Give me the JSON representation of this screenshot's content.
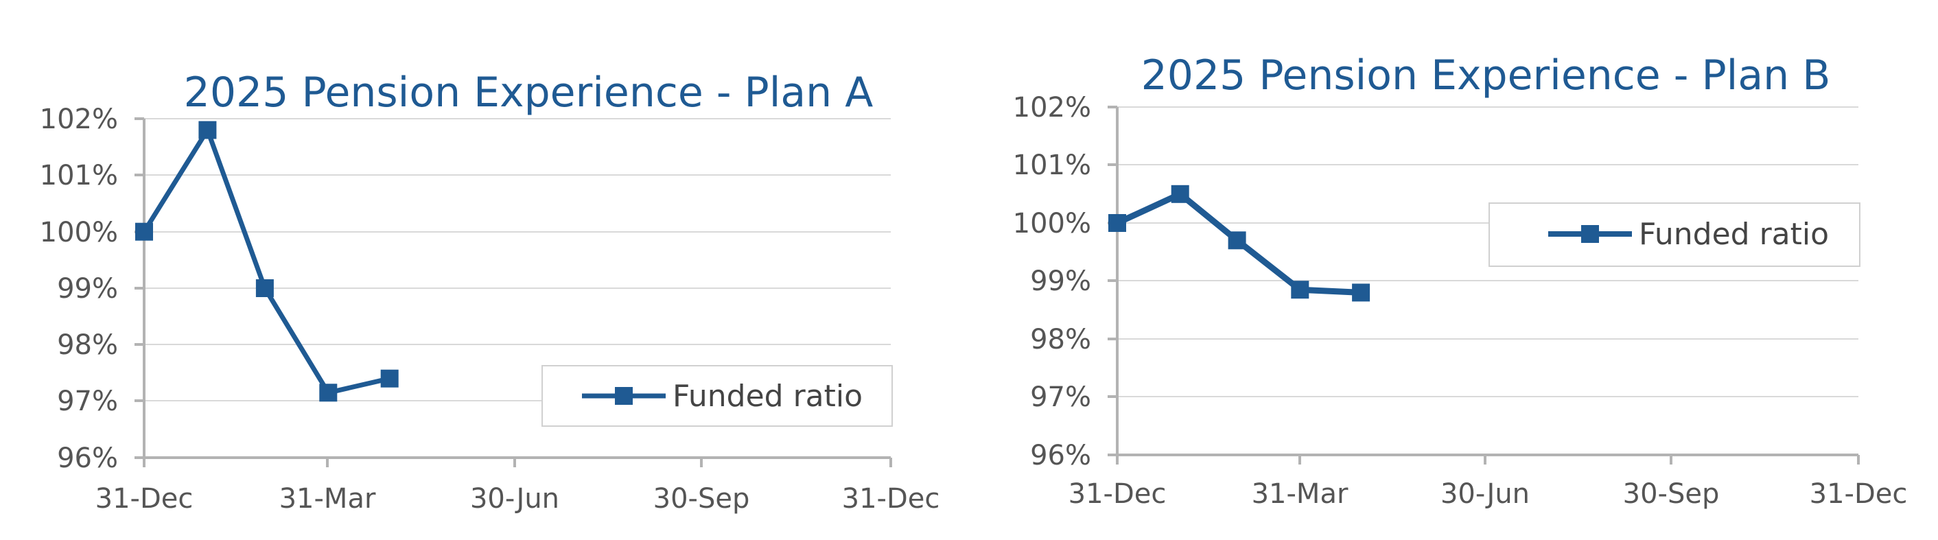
{
  "chart_data": [
    {
      "type": "line",
      "title": "2025 Pension Experience - Plan A",
      "xlabel": "",
      "ylabel": "",
      "x_ticks": [
        "31-Dec",
        "31-Mar",
        "30-Jun",
        "30-Sep",
        "31-Dec"
      ],
      "y_ticks": [
        "96%",
        "97%",
        "98%",
        "99%",
        "100%",
        "101%",
        "102%"
      ],
      "ylim": [
        96,
        102
      ],
      "grid": true,
      "legend_position": "bottom-right",
      "color": "#1f5a93",
      "series": [
        {
          "name": "Funded ratio",
          "x": [
            "31-Dec",
            "31-Jan",
            "28-Feb",
            "31-Mar",
            "30-Apr"
          ],
          "values": [
            100.0,
            101.8,
            99.0,
            97.15,
            97.4
          ]
        }
      ]
    },
    {
      "type": "line",
      "title": "2025 Pension Experience - Plan B",
      "xlabel": "",
      "ylabel": "",
      "x_ticks": [
        "31-Dec",
        "31-Mar",
        "30-Jun",
        "30-Sep",
        "31-Dec"
      ],
      "y_ticks": [
        "96%",
        "97%",
        "98%",
        "99%",
        "100%",
        "101%",
        "102%"
      ],
      "ylim": [
        96,
        102
      ],
      "grid": true,
      "legend_position": "top-right",
      "color": "#1f5a93",
      "series": [
        {
          "name": "Funded ratio",
          "x": [
            "31-Dec",
            "31-Jan",
            "28-Feb",
            "31-Mar",
            "30-Apr"
          ],
          "values": [
            100.0,
            100.5,
            99.7,
            98.85,
            98.8
          ]
        }
      ]
    }
  ]
}
